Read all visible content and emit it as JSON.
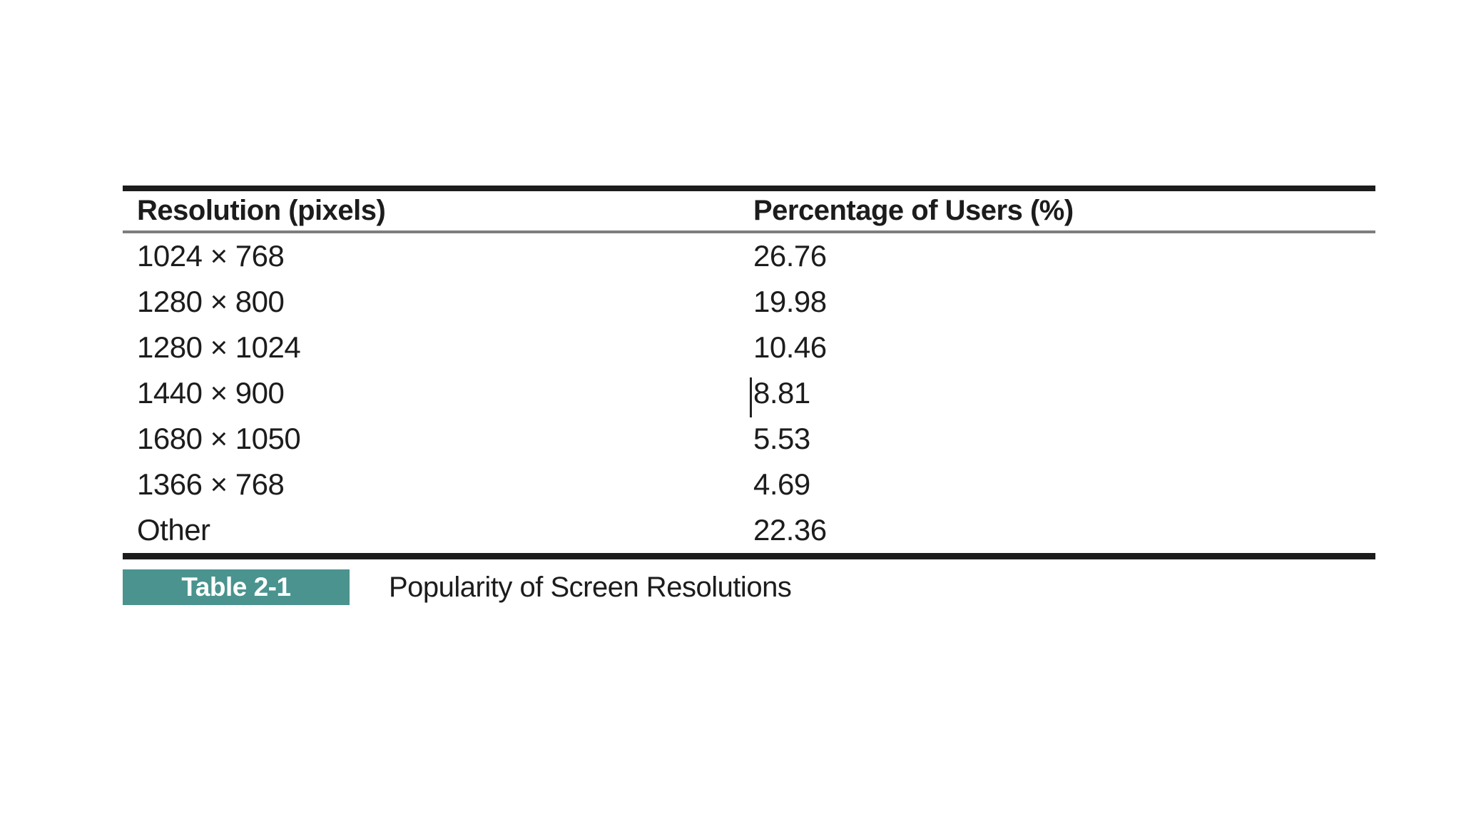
{
  "table": {
    "columns": [
      "Resolution (pixels)",
      "Percentage of Users (%)"
    ],
    "rows": [
      {
        "resolution": "1024 × 768",
        "percentage": "26.76"
      },
      {
        "resolution": "1280 × 800",
        "percentage": "19.98"
      },
      {
        "resolution": "1280 × 1024",
        "percentage": "10.46"
      },
      {
        "resolution": "1440 × 900",
        "percentage": "8.81"
      },
      {
        "resolution": "1680 × 1050",
        "percentage": "5.53"
      },
      {
        "resolution": "1366 × 768",
        "percentage": "4.69"
      },
      {
        "resolution": "Other",
        "percentage": "22.36"
      }
    ]
  },
  "caption": {
    "label": "Table 2-1",
    "text": "Popularity of Screen Resolutions"
  },
  "colors": {
    "badge_teal": "#4A938E",
    "rule_dark": "#1C1C1C",
    "rule_gray": "#7E7E7E",
    "text": "#1C1C1C",
    "background": "#FFFFFF"
  },
  "chart_data": {
    "type": "table",
    "title": "Popularity of Screen Resolutions",
    "columns": [
      "Resolution (pixels)",
      "Percentage of Users (%)"
    ],
    "rows": [
      [
        "1024 × 768",
        26.76
      ],
      [
        "1280 × 800",
        19.98
      ],
      [
        "1280 × 1024",
        10.46
      ],
      [
        "1440 × 900",
        8.81
      ],
      [
        "1680 × 1050",
        5.53
      ],
      [
        "1366 × 768",
        4.69
      ],
      [
        "Other",
        22.36
      ]
    ]
  }
}
